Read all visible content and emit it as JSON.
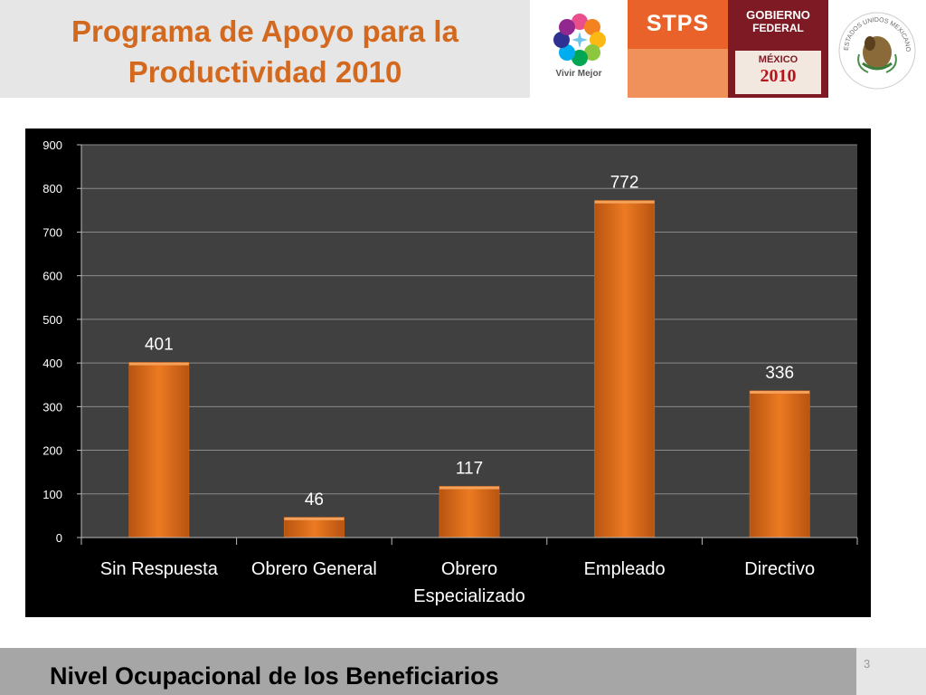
{
  "header": {
    "title_line1": "Programa de Apoyo para la",
    "title_line2": "Productividad 2010"
  },
  "logos": {
    "vivir_mejor": "Vivir Mejor",
    "stps": "STPS",
    "gobierno_line1": "Gobierno",
    "gobierno_line2": "Federal",
    "mexico": "MÉXICO",
    "mexico_year": "2010",
    "seal_text": "ESTADOS UNIDOS MEXICANOS"
  },
  "colors": {
    "title_orange": "#d2691e",
    "bar_orange": "#e0701a",
    "plot_bg": "#404040",
    "stps_orange": "#e8622a",
    "gobierno_maroon": "#7d1a24"
  },
  "chart_data": {
    "type": "bar",
    "categories": [
      "Sin Respuesta",
      "Obrero General",
      "Obrero Especializado",
      "Empleado",
      "Directivo"
    ],
    "category_lines": [
      [
        "Sin Respuesta"
      ],
      [
        "Obrero General"
      ],
      [
        "Obrero",
        "Especializado"
      ],
      [
        "Empleado"
      ],
      [
        "Directivo"
      ]
    ],
    "values": [
      401,
      46,
      117,
      772,
      336
    ],
    "value_labels": [
      "401",
      "46",
      "117",
      "772",
      "336"
    ],
    "ylim": [
      0,
      900
    ],
    "yticks": [
      0,
      100,
      200,
      300,
      400,
      500,
      600,
      700,
      800,
      900
    ],
    "ytick_labels": [
      "0",
      "100",
      "200",
      "300",
      "400",
      "500",
      "600",
      "700",
      "800",
      "900"
    ],
    "grid": true,
    "legend": "none"
  },
  "footer": {
    "title": "Nivel Ocupacional de los Beneficiarios",
    "page_number": "3"
  }
}
